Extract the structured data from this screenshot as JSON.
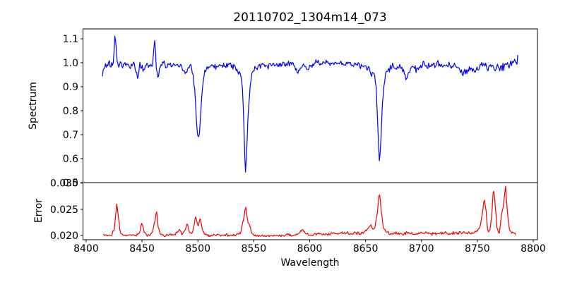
{
  "chart_data": {
    "type": "line",
    "title": "20110702_1304m14_073",
    "xlabel": "Wavelength",
    "xlim": [
      8397.2,
      8803.8
    ],
    "x_ticks": [
      {
        "v": 8400,
        "label": "8400"
      },
      {
        "v": 8450,
        "label": "8450"
      },
      {
        "v": 8500,
        "label": "8500"
      },
      {
        "v": 8550,
        "label": "8550"
      },
      {
        "v": 8600,
        "label": "8600"
      },
      {
        "v": 8650,
        "label": "8650"
      },
      {
        "v": 8700,
        "label": "8700"
      },
      {
        "v": 8750,
        "label": "8750"
      },
      {
        "v": 8800,
        "label": "8800"
      }
    ],
    "grid": false,
    "legend": "none",
    "panels": [
      {
        "name": "spectrum",
        "ylabel": "Spectrum",
        "color": "#0000ee",
        "ylim": [
          0.5,
          1.1412
        ],
        "y_ticks": [
          {
            "v": 1.1,
            "label": "1.1"
          },
          {
            "v": 1.0,
            "label": "1.0"
          },
          {
            "v": 0.9,
            "label": "0.9"
          },
          {
            "v": 0.8,
            "label": "0.8"
          },
          {
            "v": 0.7,
            "label": "0.7"
          },
          {
            "v": 0.6,
            "label": "0.6"
          },
          {
            "v": 0.5,
            "label": "0.5"
          }
        ],
        "features_note": "continuum ~1.0; emission spikes 8426->1.12, 8462->1.10; Ca II absorption dips 8499->0.68, 8542->0.53, 8662->0.58; final upturn 8787->1.05",
        "x": [
          8414.5,
          8416,
          8418,
          8420,
          8422,
          8424,
          8426,
          8428,
          8430,
          8433,
          8436,
          8439,
          8442,
          8444,
          8446,
          8448,
          8451,
          8454,
          8457,
          8459.5,
          8461.5,
          8463,
          8464.5,
          8466,
          8469,
          8472,
          8475,
          8478,
          8481,
          8484,
          8487,
          8489.5,
          8491.5,
          8493.5,
          8495.5,
          8497.5,
          8499,
          8500.3,
          8501.5,
          8503,
          8505,
          8507,
          8510,
          8513,
          8516,
          8520,
          8524,
          8528,
          8532,
          8535,
          8538,
          8540,
          8541.3,
          8542.4,
          8543.6,
          8545,
          8547,
          8549,
          8552,
          8555,
          8558,
          8562,
          8566,
          8570,
          8574,
          8578,
          8582,
          8586,
          8589.5,
          8592,
          8595,
          8598,
          8602,
          8606,
          8610,
          8614,
          8618,
          8622,
          8626,
          8630,
          8634,
          8638,
          8642,
          8646,
          8650,
          8653.5,
          8655.5,
          8657.5,
          8659.5,
          8661.3,
          8662.4,
          8663.6,
          8665,
          8667,
          8669,
          8672,
          8675,
          8678,
          8681,
          8684,
          8687,
          8689,
          8692,
          8695,
          8698,
          8702,
          8706,
          8710,
          8714,
          8718,
          8722,
          8726,
          8730,
          8734,
          8737.5,
          8740.5,
          8744,
          8747,
          8750,
          8753,
          8756,
          8759,
          8762,
          8765,
          8768,
          8771,
          8774,
          8777,
          8780,
          8783,
          8785.5,
          8786.8
        ],
        "y": [
          0.955,
          0.99,
          0.975,
          1.0,
          0.985,
          0.99,
          1.118,
          0.985,
          1.0,
          0.99,
          0.995,
          0.985,
          0.995,
          0.98,
          0.932,
          0.99,
          0.972,
          0.995,
          0.982,
          0.99,
          1.096,
          0.97,
          0.932,
          0.985,
          0.995,
          0.982,
          1.0,
          0.99,
          0.985,
          0.995,
          0.965,
          0.948,
          0.985,
          0.99,
          0.952,
          0.87,
          0.73,
          0.681,
          0.705,
          0.83,
          0.945,
          0.972,
          0.985,
          0.99,
          0.98,
          0.992,
          0.985,
          0.99,
          0.985,
          0.975,
          0.955,
          0.89,
          0.72,
          0.527,
          0.62,
          0.79,
          0.915,
          0.962,
          0.98,
          0.988,
          0.992,
          0.985,
          0.995,
          0.99,
          0.996,
          0.99,
          0.996,
          0.99,
          0.957,
          0.982,
          0.988,
          0.972,
          0.99,
          1.0,
          0.995,
          1.0,
          0.996,
          1.0,
          0.996,
          1.0,
          0.995,
          0.99,
          0.995,
          0.982,
          0.987,
          0.972,
          0.942,
          0.962,
          0.9,
          0.7,
          0.582,
          0.66,
          0.825,
          0.93,
          0.963,
          0.975,
          0.985,
          0.978,
          0.985,
          0.968,
          0.932,
          0.968,
          0.985,
          0.975,
          0.982,
          0.99,
          0.985,
          0.992,
          0.996,
          0.985,
          0.99,
          0.985,
          0.99,
          0.978,
          0.95,
          0.968,
          0.985,
          0.958,
          0.975,
          0.985,
          0.99,
          0.978,
          0.985,
          0.973,
          0.99,
          0.978,
          0.985,
          0.99,
          0.995,
          1.0,
          1.0,
          1.048
        ],
        "noise_x": [
          8414,
          8490,
          8555,
          8610,
          8655,
          8700,
          8745,
          8787
        ],
        "noise_amp": [
          0.018,
          0.016,
          0.015,
          0.015,
          0.016,
          0.019,
          0.02,
          0.022
        ]
      },
      {
        "name": "error",
        "ylabel": "Error",
        "color": "#ee0000",
        "ylim": [
          0.0192,
          0.0301
        ],
        "y_ticks": [
          {
            "v": 0.03,
            "label": "0.030"
          },
          {
            "v": 0.025,
            "label": "0.025"
          },
          {
            "v": 0.02,
            "label": "0.020"
          }
        ],
        "features_note": "baseline ~0.020; spikes 8427->0.0263, 8450->0.0228, 8463->0.0247, 8498->0.0239, 8543->0.0256, 8662->0.0284, 8756->0.0273, 8764->0.0293, 8775->0.0294",
        "x": [
          8415.5,
          8419,
          8423,
          8425.5,
          8427.3,
          8429,
          8430.5,
          8434,
          8438,
          8442,
          8446,
          8448.5,
          8450,
          8451.5,
          8455,
          8459,
          8461.5,
          8463,
          8464.5,
          8466.5,
          8470,
          8474,
          8478,
          8481.5,
          8483.5,
          8485.5,
          8488.5,
          8490.5,
          8492.5,
          8495.5,
          8498,
          8500,
          8502,
          8504,
          8506,
          8510,
          8515,
          8520,
          8525,
          8530,
          8534,
          8538,
          8541,
          8542.8,
          8544.5,
          8546,
          8548,
          8551,
          8555,
          8560,
          8565,
          8570,
          8575,
          8580,
          8585,
          8589.5,
          8593.5,
          8596.5,
          8600,
          8605,
          8610,
          8615,
          8620,
          8625,
          8630,
          8635,
          8640,
          8645,
          8649,
          8652.5,
          8654.5,
          8656.5,
          8658.5,
          8660.5,
          8662.3,
          8664,
          8666,
          8668,
          8672,
          8676,
          8680,
          8685,
          8690,
          8695,
          8700,
          8705,
          8710,
          8715,
          8720,
          8725,
          8730,
          8735,
          8740,
          8745,
          8749.5,
          8752.5,
          8754.5,
          8756.2,
          8757.8,
          8759.3,
          8761,
          8763,
          8764.4,
          8766,
          8767.8,
          8769.8,
          8771.8,
          8773.2,
          8775.3,
          8776.8,
          8778.6,
          8780.5,
          8782.5,
          8785
        ],
        "y": [
          0.0202,
          0.02,
          0.0201,
          0.0215,
          0.0263,
          0.0235,
          0.0203,
          0.02,
          0.0201,
          0.0199,
          0.0202,
          0.0209,
          0.0228,
          0.0207,
          0.02,
          0.0204,
          0.0228,
          0.0247,
          0.0216,
          0.0202,
          0.02,
          0.0201,
          0.02,
          0.0207,
          0.0212,
          0.0203,
          0.0209,
          0.0224,
          0.0205,
          0.0206,
          0.0239,
          0.0216,
          0.0234,
          0.0211,
          0.0202,
          0.02,
          0.0201,
          0.02,
          0.0201,
          0.02,
          0.0202,
          0.0204,
          0.0232,
          0.0256,
          0.0228,
          0.0221,
          0.0206,
          0.02,
          0.0199,
          0.02,
          0.0199,
          0.02,
          0.02,
          0.0201,
          0.02,
          0.0203,
          0.0211,
          0.0203,
          0.0201,
          0.0202,
          0.0203,
          0.0202,
          0.0204,
          0.0203,
          0.0205,
          0.0204,
          0.0205,
          0.0204,
          0.0206,
          0.0214,
          0.0222,
          0.0211,
          0.0216,
          0.0242,
          0.0284,
          0.0248,
          0.0214,
          0.0207,
          0.0204,
          0.0205,
          0.0203,
          0.0204,
          0.0205,
          0.0203,
          0.0204,
          0.0205,
          0.0203,
          0.0204,
          0.0205,
          0.0204,
          0.0205,
          0.0206,
          0.0204,
          0.0205,
          0.0208,
          0.0216,
          0.0241,
          0.0273,
          0.0248,
          0.021,
          0.0206,
          0.0242,
          0.0293,
          0.0258,
          0.021,
          0.0204,
          0.0242,
          0.0254,
          0.0294,
          0.0248,
          0.0212,
          0.0206,
          0.0204,
          0.0203
        ],
        "noise_x": [
          8415,
          8550,
          8650,
          8700,
          8787
        ],
        "noise_amp": [
          0.00028,
          0.0003,
          0.00033,
          0.00035,
          0.00035
        ]
      }
    ]
  }
}
